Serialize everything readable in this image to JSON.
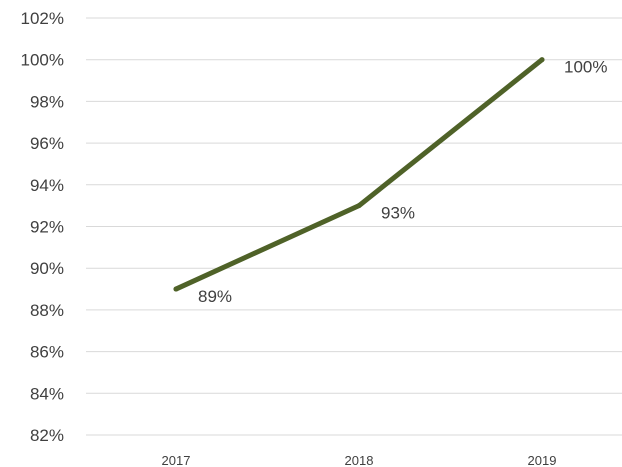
{
  "chart_data": {
    "type": "line",
    "categories": [
      "2017",
      "2018",
      "2019"
    ],
    "series": [
      {
        "values": [
          89,
          93,
          100
        ],
        "data_labels": [
          "89%",
          "93%",
          "100%"
        ],
        "color": "#4f6228"
      }
    ],
    "ylim": [
      82,
      102
    ],
    "yticks": [
      82,
      84,
      86,
      88,
      90,
      92,
      94,
      96,
      98,
      100,
      102
    ],
    "ytick_labels": [
      "82%",
      "84%",
      "86%",
      "88%",
      "90%",
      "92%",
      "94%",
      "96%",
      "98%",
      "100%",
      "102%"
    ],
    "grid": true,
    "legend": "none",
    "gridline_color": "#d9d9d9",
    "text_color": "#404040"
  }
}
